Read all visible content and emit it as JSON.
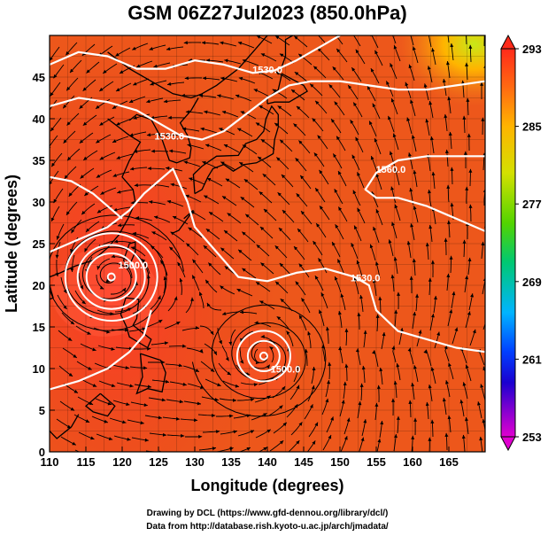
{
  "figure": {
    "title": "GSM 06Z27Jul2023 (850.0hPa)",
    "xlabel": "Longitude (degrees)",
    "ylabel": "Latitude  (degrees)",
    "credit_line1": "Drawing by DCL (https://www.gfd-dennou.org/library/dcl/)",
    "credit_line2": "Data from http://database.rish.kyoto-u.ac.jp/arch/jmadata/"
  },
  "map": {
    "lon_range": [
      110,
      170
    ],
    "lat_range": [
      0,
      50
    ],
    "x_ticks": [
      "110",
      "115",
      "120",
      "125",
      "130",
      "135",
      "140",
      "145",
      "150",
      "155",
      "160",
      "165"
    ],
    "y_ticks": [
      "0",
      "5",
      "10",
      "15",
      "20",
      "25",
      "30",
      "35",
      "40",
      "45"
    ],
    "field_color": "#e8401c",
    "coast_color": "#000000",
    "contour_color": "#ffffff",
    "contour_labels": [
      {
        "text": "1530.0",
        "lon": 140,
        "lat": 45.5
      },
      {
        "text": "1560.0",
        "lon": 157,
        "lat": 33.5
      },
      {
        "text": "1530.0",
        "lon": 153.5,
        "lat": 20.5
      },
      {
        "text": "1500.0",
        "lon": 142.5,
        "lat": 9.5
      },
      {
        "text": "1500.0",
        "lon": 121.5,
        "lat": 22
      },
      {
        "text": "1530.0",
        "lon": 126.5,
        "lat": 37.5
      }
    ],
    "cyclones": [
      {
        "name": "typhoon-west",
        "lon": 118.5,
        "lat": 21
      },
      {
        "name": "typhoon-east",
        "lon": 139.5,
        "lat": 11.5
      }
    ]
  },
  "colorbar": {
    "labels": [
      "293",
      "285",
      "277",
      "269",
      "261",
      "253"
    ],
    "range": [
      253,
      293
    ],
    "colors": [
      "#ff2a1a",
      "#ff6a12",
      "#ffb400",
      "#d4e000",
      "#52d400",
      "#00c872",
      "#00b4ff",
      "#0040ff",
      "#1a00d0",
      "#9000d0",
      "#e000d0"
    ]
  }
}
